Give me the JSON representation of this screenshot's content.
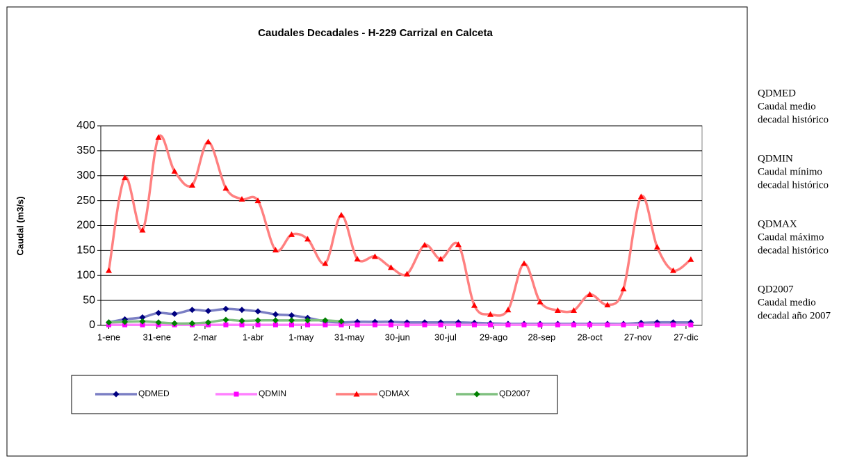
{
  "chart_data": {
    "type": "line",
    "title": "Caudales Decadales - H-229 Carrizal en Calceta",
    "y_label": "Caudal (m3/s)",
    "x": [
      1,
      11,
      22,
      32,
      42,
      53,
      63,
      74,
      84,
      94,
      105,
      115,
      125,
      136,
      146,
      156,
      167,
      177,
      187,
      198,
      208,
      219,
      229,
      239,
      250,
      260,
      270,
      281,
      291,
      301,
      312,
      322,
      333,
      343,
      353,
      364
    ],
    "xlim": [
      -4,
      371
    ],
    "xticks": [
      {
        "value": 1,
        "label": "1-ene"
      },
      {
        "value": 31,
        "label": "31-ene"
      },
      {
        "value": 61,
        "label": "2-mar"
      },
      {
        "value": 91,
        "label": "1-abr"
      },
      {
        "value": 121,
        "label": "1-may"
      },
      {
        "value": 151,
        "label": "31-may"
      },
      {
        "value": 181,
        "label": "30-jun"
      },
      {
        "value": 211,
        "label": "30-jul"
      },
      {
        "value": 241,
        "label": "29-ago"
      },
      {
        "value": 271,
        "label": "28-sep"
      },
      {
        "value": 301,
        "label": "28-oct"
      },
      {
        "value": 331,
        "label": "27-nov"
      },
      {
        "value": 361,
        "label": "27-dic"
      }
    ],
    "ylim": [
      0,
      400
    ],
    "yticks": [
      0,
      50,
      100,
      150,
      200,
      250,
      300,
      350,
      400
    ],
    "grid": true,
    "series": [
      {
        "name": "QDMED",
        "color": "#7b7fc4",
        "marker_color": "#000080",
        "marker": "diamond",
        "values": [
          6,
          12,
          16,
          25,
          23,
          31,
          29,
          33,
          31,
          28,
          22,
          20,
          15,
          8,
          6,
          7,
          7,
          7,
          6,
          6,
          6,
          6,
          5,
          4,
          3,
          3,
          3,
          3,
          3,
          3,
          3,
          3,
          5,
          6,
          6,
          6
        ]
      },
      {
        "name": "QDMIN",
        "color": "#ff80ff",
        "marker_color": "#ff00ff",
        "marker": "square",
        "values": [
          1,
          1,
          1,
          1,
          1,
          1,
          1,
          1,
          1,
          1,
          1,
          1,
          1,
          1,
          1,
          1,
          1,
          1,
          1,
          1,
          1,
          1,
          1,
          1,
          1,
          1,
          1,
          1,
          1,
          1,
          1,
          1,
          1,
          1,
          1,
          1
        ]
      },
      {
        "name": "QDMAX",
        "color": "#ff8080",
        "marker_color": "#ff0000",
        "marker": "triangle",
        "values": [
          110,
          296,
          191,
          377,
          309,
          281,
          368,
          275,
          253,
          250,
          151,
          182,
          173,
          124,
          221,
          133,
          138,
          116,
          103,
          161,
          133,
          162,
          40,
          22,
          31,
          124,
          47,
          30,
          30,
          62,
          41,
          73,
          258,
          157,
          110,
          132
        ]
      },
      {
        "name": "QD2007",
        "color": "#80c080",
        "marker_color": "#008000",
        "marker": "diamond",
        "values": [
          6,
          7,
          8,
          6,
          4,
          4,
          6,
          11,
          9,
          10,
          10,
          10,
          10,
          10,
          8,
          null,
          null,
          null,
          null,
          null,
          null,
          null,
          null,
          null,
          null,
          null,
          null,
          null,
          null,
          null,
          null,
          null,
          null,
          null,
          null,
          null
        ]
      }
    ]
  },
  "notes": [
    {
      "title": "QDMED",
      "lines": [
        "Caudal medio",
        "decadal histórico"
      ]
    },
    {
      "title": "QDMIN",
      "lines": [
        "Caudal mínimo",
        "decadal histórico"
      ]
    },
    {
      "title": "QDMAX",
      "lines": [
        "Caudal máximo",
        "decadal histórico"
      ]
    },
    {
      "title": "QD2007",
      "lines": [
        "Caudal medio",
        "decadal año 2007"
      ]
    }
  ]
}
